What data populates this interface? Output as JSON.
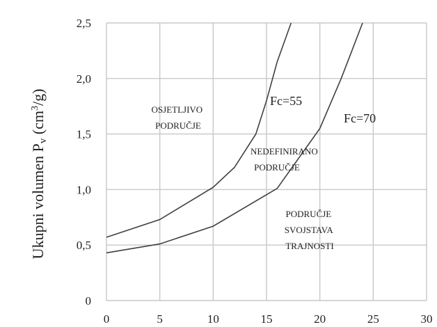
{
  "chart_data": {
    "type": "line",
    "ylabel_main": "Ukupni volumen P",
    "ylabel_sub": "v",
    "ylabel_unit_open": "(cm",
    "ylabel_unit_sup": "3",
    "ylabel_unit_close": "/g)",
    "xlabel": "",
    "xlim": [
      0,
      30
    ],
    "ylim": [
      0,
      2.5
    ],
    "x_ticks": [
      "0",
      "5",
      "10",
      "15",
      "20",
      "25",
      "30"
    ],
    "y_ticks": [
      "0",
      "0,5",
      "1,0",
      "1,5",
      "2,0",
      "2,5"
    ],
    "grid": true,
    "series": [
      {
        "name": "Fc=55",
        "x": [
          0,
          5,
          10,
          12,
          14,
          15,
          16,
          17.3
        ],
        "y": [
          0.57,
          0.73,
          1.02,
          1.2,
          1.5,
          1.8,
          2.15,
          2.5
        ]
      },
      {
        "name": "Fc=70",
        "x": [
          0,
          5,
          10,
          16,
          20,
          22,
          23,
          24
        ],
        "y": [
          0.43,
          0.51,
          0.67,
          1.01,
          1.55,
          2.0,
          2.25,
          2.5
        ]
      }
    ],
    "annotations": [
      {
        "lines": [
          "OSJETLJIVO",
          "PODRUČJE"
        ]
      },
      {
        "lines": [
          "NEDEFINIRANO",
          "PODRUČJE"
        ]
      },
      {
        "lines": [
          "PODRUČJE",
          "SVOJSTAVA",
          "TRAJNOSTI"
        ]
      }
    ]
  }
}
